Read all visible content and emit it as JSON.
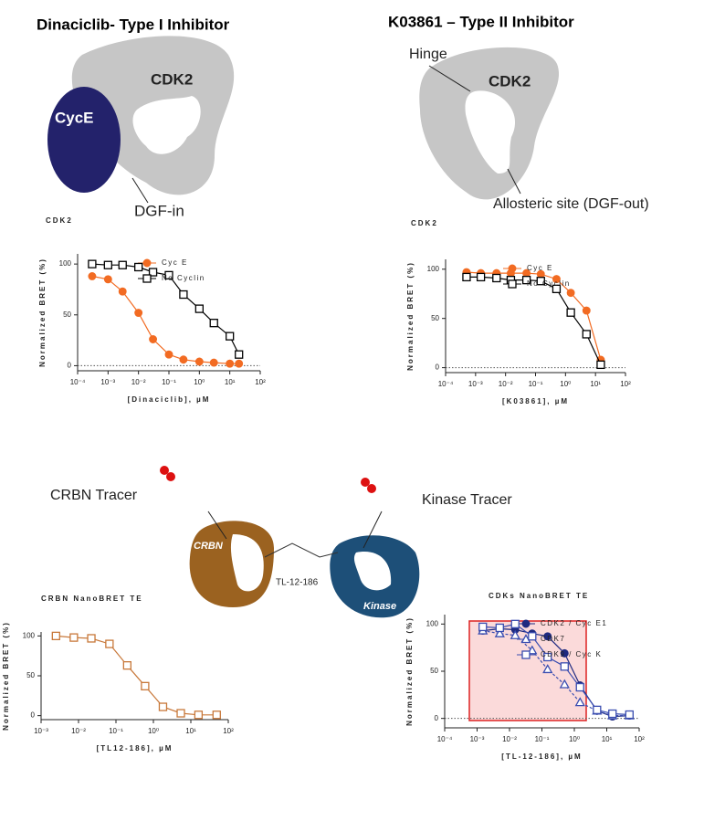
{
  "chart_data": [
    {
      "type": "line",
      "title": "CDK2",
      "xlabel": "[Dinaciclib], µM",
      "ylabel": "Normalized BRET (%)",
      "xscale": "log",
      "xlim": [
        0.0001,
        100
      ],
      "ylim": [
        -5,
        110
      ],
      "xticks": [
        {
          "value": 0.0001,
          "label": "10⁻⁴"
        },
        {
          "value": 0.001,
          "label": "10⁻³"
        },
        {
          "value": 0.01,
          "label": "10⁻²"
        },
        {
          "value": 0.1,
          "label": "10⁻¹"
        },
        {
          "value": 1,
          "label": "10⁰"
        },
        {
          "value": 10,
          "label": "10¹"
        },
        {
          "value": 100,
          "label": "10²"
        }
      ],
      "yticks": [
        0,
        50,
        100
      ],
      "legend": "upper right",
      "zero_line": true,
      "x": [
        0.0003,
        0.001,
        0.003,
        0.01,
        0.03,
        0.1,
        0.3,
        1,
        3,
        10,
        20
      ],
      "series": [
        {
          "name": "Cyc E",
          "color": "#f26b22",
          "marker": "circle",
          "filled": true,
          "values": [
            88,
            85,
            73,
            52,
            26,
            11,
            6,
            4,
            3,
            2,
            2
          ]
        },
        {
          "name": "No Cyclin",
          "color": "#000000",
          "marker": "square",
          "filled": false,
          "values": [
            100,
            99,
            99,
            97,
            92,
            89,
            70,
            56,
            42,
            29,
            11
          ]
        }
      ]
    },
    {
      "type": "line",
      "title": "CDK2",
      "xlabel": "[K03861], µM",
      "ylabel": "Normalized BRET (%)",
      "xscale": "log",
      "xlim": [
        0.0001,
        100
      ],
      "ylim": [
        -5,
        110
      ],
      "xticks": [
        {
          "value": 0.0001,
          "label": "10⁻⁴"
        },
        {
          "value": 0.001,
          "label": "10⁻³"
        },
        {
          "value": 0.01,
          "label": "10⁻²"
        },
        {
          "value": 0.1,
          "label": "10⁻¹"
        },
        {
          "value": 1,
          "label": "10⁰"
        },
        {
          "value": 10,
          "label": "10¹"
        },
        {
          "value": 100,
          "label": "10²"
        }
      ],
      "yticks": [
        0,
        50,
        100
      ],
      "legend": "upper right",
      "zero_line": true,
      "x": [
        0.0005,
        0.0015,
        0.005,
        0.015,
        0.05,
        0.15,
        0.5,
        1.5,
        5,
        15
      ],
      "series": [
        {
          "name": "Cyc E",
          "color": "#f26b22",
          "marker": "circle",
          "filled": true,
          "values": [
            97,
            96,
            96,
            96,
            96,
            95,
            90,
            76,
            58,
            8
          ]
        },
        {
          "name": "No Cyclin",
          "color": "#000000",
          "marker": "square",
          "filled": false,
          "values": [
            92,
            92,
            91,
            89,
            89,
            88,
            80,
            56,
            34,
            3
          ]
        }
      ]
    },
    {
      "type": "line",
      "title": "CRBN NanoBRET TE",
      "xlabel": "[TL12-186], µM",
      "ylabel": "Normalized BRET (%)",
      "xscale": "log",
      "xlim": [
        0.001,
        100
      ],
      "ylim": [
        -5,
        105
      ],
      "xticks": [
        {
          "value": 0.001,
          "label": "10⁻³"
        },
        {
          "value": 0.01,
          "label": "10⁻²"
        },
        {
          "value": 0.1,
          "label": "10⁻¹"
        },
        {
          "value": 1,
          "label": "10⁰"
        },
        {
          "value": 10,
          "label": "10¹"
        },
        {
          "value": 100,
          "label": "10²"
        }
      ],
      "yticks": [
        0,
        50,
        100
      ],
      "zero_line": false,
      "x": [
        0.0025,
        0.0075,
        0.022,
        0.067,
        0.2,
        0.6,
        1.8,
        5.4,
        16,
        49
      ],
      "series": [
        {
          "color": "#c8783a",
          "marker": "square",
          "filled": false,
          "values": [
            100,
            98,
            97,
            90,
            63,
            37,
            11,
            3,
            1,
            1
          ]
        }
      ]
    },
    {
      "type": "line",
      "title": "CDKs NanoBRET TE",
      "xlabel": "[TL-12-186], µM",
      "ylabel": "Normalized BRET (%)",
      "xscale": "log",
      "xlim": [
        0.0001,
        100
      ],
      "ylim": [
        -10,
        110
      ],
      "xticks": [
        {
          "value": 0.0001,
          "label": "10⁻⁴"
        },
        {
          "value": 0.001,
          "label": "10⁻³"
        },
        {
          "value": 0.01,
          "label": "10⁻²"
        },
        {
          "value": 0.1,
          "label": "10⁻¹"
        },
        {
          "value": 1,
          "label": "10⁰"
        },
        {
          "value": 10,
          "label": "10¹"
        },
        {
          "value": 100,
          "label": "10²"
        }
      ],
      "yticks": [
        0,
        50,
        100
      ],
      "legend": "upper right",
      "zero_line": true,
      "x": [
        0.0015,
        0.005,
        0.015,
        0.05,
        0.15,
        0.5,
        1.5,
        5,
        15,
        50
      ],
      "series": [
        {
          "name": "CDK2 / Cyc E1",
          "color": "#1f2a80",
          "marker": "circle",
          "filled": true,
          "values": [
            93,
            95,
            94,
            90,
            87,
            69,
            35,
            8,
            2,
            3
          ]
        },
        {
          "name": "CDK7",
          "color": "#3a4db0",
          "marker": "triangle",
          "filled": false,
          "values": [
            93,
            90,
            88,
            72,
            52,
            36,
            17,
            8,
            3,
            3
          ]
        },
        {
          "name": "CDK9 / Cyc K",
          "color": "#3a4db0",
          "marker": "square",
          "filled": false,
          "values": [
            97,
            96,
            100,
            87,
            65,
            55,
            33,
            9,
            5,
            4
          ]
        }
      ]
    }
  ],
  "diagrams": {
    "type_i": {
      "title": "Dinaciclib- Type I Inhibitor",
      "kinase": "CDK2",
      "cyclin": "CycE",
      "pocket": "DGF-in"
    },
    "type_ii": {
      "title": "K03861 – Type II Inhibitor",
      "hinge": "Hinge",
      "kinase": "CDK2",
      "pocket": "Allosteric site (DGF-out)"
    },
    "degrader": {
      "crbn_tracer": "CRBN Tracer",
      "kinase_tracer": "Kinase Tracer",
      "crbn": "CRBN",
      "linker": "TL-12-186",
      "kinase": "Kinase"
    }
  }
}
